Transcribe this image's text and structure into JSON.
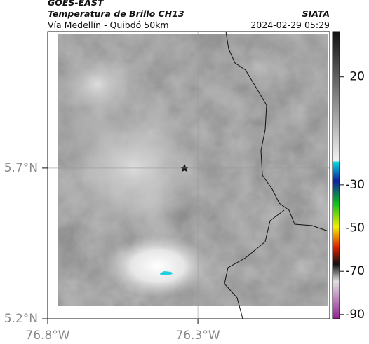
{
  "header": {
    "source": "GOES-EAST",
    "title": "Temperatura de Brillo CH13",
    "subtitle": "Vía Medellín - Quibdó 50km",
    "org": "SIATA",
    "datetime": "2024-02-29 05:29"
  },
  "map": {
    "xlim": [
      -76.8,
      -75.861
    ],
    "ylim": [
      5.2,
      6.153
    ],
    "xticks": [
      {
        "value": -76.8,
        "label": "76.8°W"
      },
      {
        "value": -76.3,
        "label": "76.3°W"
      }
    ],
    "yticks": [
      {
        "value": 5.2,
        "label": "5.2°N"
      },
      {
        "value": 5.7,
        "label": "5.7°N"
      }
    ],
    "grid": true
  },
  "colorbar": {
    "lim": [
      -92,
      41
    ],
    "ticks": [
      20,
      -30,
      -50,
      -70,
      -90
    ]
  }
}
